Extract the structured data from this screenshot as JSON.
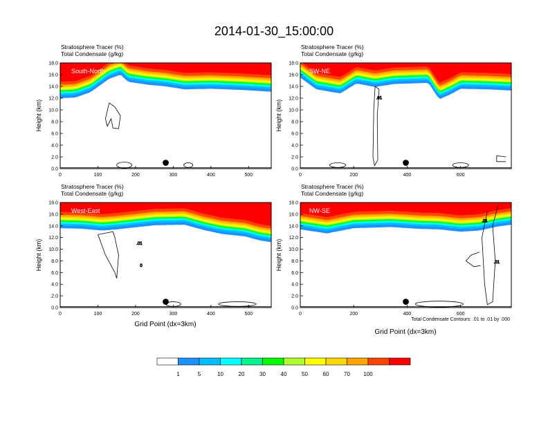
{
  "title": "2014-01-30_15:00:00",
  "var_label_1": "Stratosphere Tracer   (%)",
  "var_label_2": "Total Condensate   (g/kg)",
  "ylabel": "Height (km)",
  "xlabel": "Grid Point (dx=3km)",
  "contour_note": "Total Condensate Contours: .01 to .01 by .000",
  "colorbar": {
    "levels": [
      "1",
      "5",
      "10",
      "20",
      "30",
      "40",
      "50",
      "60",
      "70",
      "100"
    ],
    "colors": [
      "#ffffff",
      "#1e90ff",
      "#00bfff",
      "#00ffff",
      "#00f58c",
      "#00ff00",
      "#adff2f",
      "#ffff00",
      "#ffd700",
      "#ffa500",
      "#ff4500",
      "#ff0000"
    ]
  },
  "chart_data": [
    {
      "type": "heatmap",
      "panel_label": "South-North",
      "xlim": [
        0,
        560
      ],
      "ylim": [
        0,
        18
      ],
      "xticks": [
        0,
        100,
        200,
        300,
        400,
        500
      ],
      "yticks": [
        0.0,
        2.0,
        4.0,
        6.0,
        8.0,
        10.0,
        12.0,
        14.0,
        16.0,
        18.0
      ],
      "ytick_labels": [
        "0.0",
        "2.0",
        "4.0",
        "6.0",
        "8.0",
        "10.0",
        "12.0",
        "14.0",
        "16.0",
        "18.0"
      ],
      "tracer_lower_edge_km": [
        [
          0,
          12.0
        ],
        [
          40,
          12.1
        ],
        [
          80,
          13.0
        ],
        [
          130,
          15.3
        ],
        [
          160,
          16.0
        ],
        [
          180,
          14.8
        ],
        [
          230,
          14.3
        ],
        [
          280,
          14.0
        ],
        [
          330,
          13.5
        ],
        [
          400,
          13.6
        ],
        [
          480,
          13.4
        ],
        [
          560,
          13.1
        ]
      ],
      "contour_labels": [],
      "marker_x": 280
    },
    {
      "type": "heatmap",
      "panel_label": "SW-NE",
      "xlim": [
        0,
        790
      ],
      "ylim": [
        0,
        18
      ],
      "xticks": [
        0,
        200,
        400,
        600
      ],
      "yticks": [
        0.0,
        2.0,
        4.0,
        6.0,
        8.0,
        10.0,
        12.0,
        14.0,
        16.0,
        18.0
      ],
      "ytick_labels": [
        "0.0",
        "2.0",
        "4.0",
        "6.0",
        "8.0",
        "10.0",
        "12.0",
        "14.0",
        "16.0",
        "18.0"
      ],
      "tracer_lower_edge_km": [
        [
          0,
          15.5
        ],
        [
          60,
          13.5
        ],
        [
          150,
          12.8
        ],
        [
          210,
          14.5
        ],
        [
          280,
          13.9
        ],
        [
          350,
          14.4
        ],
        [
          480,
          14.6
        ],
        [
          520,
          11.8
        ],
        [
          560,
          12.6
        ],
        [
          600,
          13.6
        ],
        [
          700,
          13.5
        ],
        [
          790,
          13.3
        ]
      ],
      "contour_labels": [
        ".01"
      ],
      "marker_x": 395
    },
    {
      "type": "heatmap",
      "panel_label": "West-East",
      "xlim": [
        0,
        560
      ],
      "ylim": [
        0,
        18
      ],
      "xticks": [
        0,
        100,
        200,
        300,
        400,
        500
      ],
      "yticks": [
        0.0,
        2.0,
        4.0,
        6.0,
        8.0,
        10.0,
        12.0,
        14.0,
        16.0,
        18.0
      ],
      "ytick_labels": [
        "0.0",
        "2.0",
        "4.0",
        "6.0",
        "8.0",
        "10.0",
        "12.0",
        "14.0",
        "16.0",
        "18.0"
      ],
      "tracer_lower_edge_km": [
        [
          0,
          13.6
        ],
        [
          60,
          13.5
        ],
        [
          110,
          13.2
        ],
        [
          150,
          13.4
        ],
        [
          250,
          14.1
        ],
        [
          330,
          14.2
        ],
        [
          380,
          13.3
        ],
        [
          430,
          12.6
        ],
        [
          490,
          12.2
        ],
        [
          530,
          11.5
        ],
        [
          560,
          11.2
        ]
      ],
      "contour_labels": [
        ".01",
        "0"
      ],
      "marker_x": 280
    },
    {
      "type": "heatmap",
      "panel_label": "NW-SE",
      "xlim": [
        0,
        790
      ],
      "ylim": [
        0,
        18
      ],
      "xticks": [
        0,
        200,
        400,
        600
      ],
      "yticks": [
        0.0,
        2.0,
        4.0,
        6.0,
        8.0,
        10.0,
        12.0,
        14.0,
        16.0,
        18.0
      ],
      "ytick_labels": [
        "0.0",
        "2.0",
        "4.0",
        "6.0",
        "8.0",
        "10.0",
        "12.0",
        "14.0",
        "16.0",
        "18.0"
      ],
      "tracer_lower_edge_km": [
        [
          0,
          13.4
        ],
        [
          100,
          12.7
        ],
        [
          200,
          13.6
        ],
        [
          340,
          13.8
        ],
        [
          440,
          13.5
        ],
        [
          520,
          13.4
        ],
        [
          600,
          13.0
        ],
        [
          670,
          13.2
        ],
        [
          740,
          13.9
        ],
        [
          790,
          14.2
        ]
      ],
      "contour_labels": [
        ".01",
        ".01"
      ],
      "marker_x": 395
    }
  ]
}
